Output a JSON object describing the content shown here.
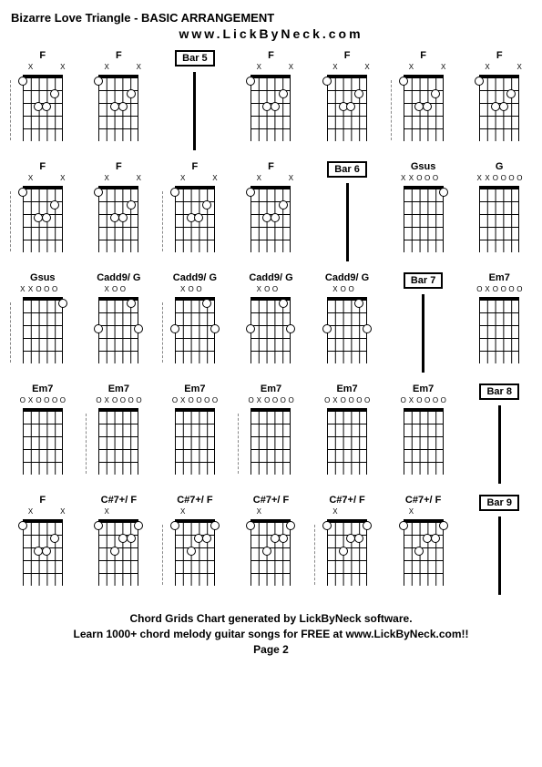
{
  "title": "Bizarre Love Triangle - BASIC ARRANGEMENT",
  "subtitle": "www.LickByNeck.com",
  "footer_line1": "Chord Grids Chart generated by LickByNeck software.",
  "footer_line2": "Learn 1000+ chord melody guitar songs for FREE at www.LickByNeck.com!!",
  "footer_line3": "Page 2",
  "strings": 6,
  "frets": 5,
  "rows": [
    {
      "cells": [
        {
          "type": "chord",
          "label": "F",
          "sep": true,
          "markers": [
            "",
            "X",
            "",
            "",
            "",
            "X"
          ],
          "dots": [
            [
              0,
              1
            ],
            [
              2,
              3
            ],
            [
              3,
              3
            ],
            [
              4,
              2
            ]
          ]
        },
        {
          "type": "chord",
          "label": "F",
          "sep": false,
          "markers": [
            "",
            "X",
            "",
            "",
            "",
            "X"
          ],
          "dots": [
            [
              0,
              1
            ],
            [
              2,
              3
            ],
            [
              3,
              3
            ],
            [
              4,
              2
            ]
          ]
        },
        {
          "type": "bar",
          "label": "Bar 5"
        },
        {
          "type": "chord",
          "label": "F",
          "sep": false,
          "markers": [
            "",
            "X",
            "",
            "",
            "",
            "X"
          ],
          "dots": [
            [
              0,
              1
            ],
            [
              2,
              3
            ],
            [
              3,
              3
            ],
            [
              4,
              2
            ]
          ]
        },
        {
          "type": "chord",
          "label": "F",
          "sep": false,
          "markers": [
            "",
            "X",
            "",
            "",
            "",
            "X"
          ],
          "dots": [
            [
              0,
              1
            ],
            [
              2,
              3
            ],
            [
              3,
              3
            ],
            [
              4,
              2
            ]
          ]
        },
        {
          "type": "chord",
          "label": "F",
          "sep": true,
          "markers": [
            "",
            "X",
            "",
            "",
            "",
            "X"
          ],
          "dots": [
            [
              0,
              1
            ],
            [
              2,
              3
            ],
            [
              3,
              3
            ],
            [
              4,
              2
            ]
          ]
        },
        {
          "type": "chord",
          "label": "F",
          "sep": false,
          "markers": [
            "",
            "X",
            "",
            "",
            "",
            "X"
          ],
          "dots": [
            [
              0,
              1
            ],
            [
              2,
              3
            ],
            [
              3,
              3
            ],
            [
              4,
              2
            ]
          ]
        }
      ]
    },
    {
      "cells": [
        {
          "type": "chord",
          "label": "F",
          "sep": true,
          "markers": [
            "",
            "X",
            "",
            "",
            "",
            "X"
          ],
          "dots": [
            [
              0,
              1
            ],
            [
              2,
              3
            ],
            [
              3,
              3
            ],
            [
              4,
              2
            ]
          ]
        },
        {
          "type": "chord",
          "label": "F",
          "sep": false,
          "markers": [
            "",
            "X",
            "",
            "",
            "",
            "X"
          ],
          "dots": [
            [
              0,
              1
            ],
            [
              2,
              3
            ],
            [
              3,
              3
            ],
            [
              4,
              2
            ]
          ]
        },
        {
          "type": "chord",
          "label": "F",
          "sep": true,
          "markers": [
            "",
            "X",
            "",
            "",
            "",
            "X"
          ],
          "dots": [
            [
              0,
              1
            ],
            [
              2,
              3
            ],
            [
              3,
              3
            ],
            [
              4,
              2
            ]
          ]
        },
        {
          "type": "chord",
          "label": "F",
          "sep": false,
          "markers": [
            "",
            "X",
            "",
            "",
            "",
            "X"
          ],
          "dots": [
            [
              0,
              1
            ],
            [
              2,
              3
            ],
            [
              3,
              3
            ],
            [
              4,
              2
            ]
          ]
        },
        {
          "type": "bar",
          "label": "Bar 6"
        },
        {
          "type": "chord",
          "label": "Gsus",
          "sep": false,
          "markers": [
            "X",
            "X",
            "O",
            "O",
            "O",
            ""
          ],
          "dots": [
            [
              5,
              1
            ]
          ]
        },
        {
          "type": "chord",
          "label": "G",
          "sep": false,
          "markers": [
            "X",
            "X",
            "O",
            "O",
            "O",
            "O"
          ],
          "dots": []
        }
      ]
    },
    {
      "cells": [
        {
          "type": "chord",
          "label": "Gsus",
          "sep": true,
          "markers": [
            "X",
            "X",
            "O",
            "O",
            "O",
            ""
          ],
          "dots": [
            [
              5,
              1
            ]
          ]
        },
        {
          "type": "chord",
          "label": "Cadd9/ G",
          "sep": false,
          "markers": [
            "",
            "X",
            "O",
            "O",
            "",
            ""
          ],
          "dots": [
            [
              0,
              3
            ],
            [
              4,
              1
            ],
            [
              5,
              3
            ]
          ]
        },
        {
          "type": "chord",
          "label": "Cadd9/ G",
          "sep": true,
          "markers": [
            "",
            "X",
            "O",
            "O",
            "",
            ""
          ],
          "dots": [
            [
              0,
              3
            ],
            [
              4,
              1
            ],
            [
              5,
              3
            ]
          ]
        },
        {
          "type": "chord",
          "label": "Cadd9/ G",
          "sep": false,
          "markers": [
            "",
            "X",
            "O",
            "O",
            "",
            ""
          ],
          "dots": [
            [
              0,
              3
            ],
            [
              4,
              1
            ],
            [
              5,
              3
            ]
          ]
        },
        {
          "type": "chord",
          "label": "Cadd9/ G",
          "sep": false,
          "markers": [
            "",
            "X",
            "O",
            "O",
            "",
            ""
          ],
          "dots": [
            [
              0,
              3
            ],
            [
              4,
              1
            ],
            [
              5,
              3
            ]
          ]
        },
        {
          "type": "bar",
          "label": "Bar 7"
        },
        {
          "type": "chord",
          "label": "Em7",
          "sep": false,
          "markers": [
            "O",
            "X",
            "O",
            "O",
            "O",
            "O"
          ],
          "dots": []
        }
      ]
    },
    {
      "cells": [
        {
          "type": "chord",
          "label": "Em7",
          "sep": false,
          "markers": [
            "O",
            "X",
            "O",
            "O",
            "O",
            "O"
          ],
          "dots": []
        },
        {
          "type": "chord",
          "label": "Em7",
          "sep": true,
          "markers": [
            "O",
            "X",
            "O",
            "O",
            "O",
            "O"
          ],
          "dots": []
        },
        {
          "type": "chord",
          "label": "Em7",
          "sep": false,
          "markers": [
            "O",
            "X",
            "O",
            "O",
            "O",
            "O"
          ],
          "dots": []
        },
        {
          "type": "chord",
          "label": "Em7",
          "sep": true,
          "markers": [
            "O",
            "X",
            "O",
            "O",
            "O",
            "O"
          ],
          "dots": []
        },
        {
          "type": "chord",
          "label": "Em7",
          "sep": false,
          "markers": [
            "O",
            "X",
            "O",
            "O",
            "O",
            "O"
          ],
          "dots": []
        },
        {
          "type": "chord",
          "label": "Em7",
          "sep": false,
          "markers": [
            "O",
            "X",
            "O",
            "O",
            "O",
            "O"
          ],
          "dots": []
        },
        {
          "type": "bar",
          "label": "Bar 8"
        }
      ]
    },
    {
      "cells": [
        {
          "type": "chord",
          "label": "F",
          "sep": false,
          "markers": [
            "",
            "X",
            "",
            "",
            "",
            "X"
          ],
          "dots": [
            [
              0,
              1
            ],
            [
              2,
              3
            ],
            [
              3,
              3
            ],
            [
              4,
              2
            ]
          ]
        },
        {
          "type": "chord",
          "label": "C#7+/ F",
          "sep": false,
          "markers": [
            "",
            "X",
            "",
            "",
            "",
            ""
          ],
          "dots": [
            [
              0,
              1
            ],
            [
              2,
              3
            ],
            [
              3,
              2
            ],
            [
              4,
              2
            ],
            [
              5,
              1
            ]
          ]
        },
        {
          "type": "chord",
          "label": "C#7+/ F",
          "sep": true,
          "markers": [
            "",
            "X",
            "",
            "",
            "",
            ""
          ],
          "dots": [
            [
              0,
              1
            ],
            [
              2,
              3
            ],
            [
              3,
              2
            ],
            [
              4,
              2
            ],
            [
              5,
              1
            ]
          ]
        },
        {
          "type": "chord",
          "label": "C#7+/ F",
          "sep": false,
          "markers": [
            "",
            "X",
            "",
            "",
            "",
            ""
          ],
          "dots": [
            [
              0,
              1
            ],
            [
              2,
              3
            ],
            [
              3,
              2
            ],
            [
              4,
              2
            ],
            [
              5,
              1
            ]
          ]
        },
        {
          "type": "chord",
          "label": "C#7+/ F",
          "sep": true,
          "markers": [
            "",
            "X",
            "",
            "",
            "",
            ""
          ],
          "dots": [
            [
              0,
              1
            ],
            [
              2,
              3
            ],
            [
              3,
              2
            ],
            [
              4,
              2
            ],
            [
              5,
              1
            ]
          ]
        },
        {
          "type": "chord",
          "label": "C#7+/ F",
          "sep": false,
          "markers": [
            "",
            "X",
            "",
            "",
            "",
            ""
          ],
          "dots": [
            [
              0,
              1
            ],
            [
              2,
              3
            ],
            [
              3,
              2
            ],
            [
              4,
              2
            ],
            [
              5,
              1
            ]
          ]
        },
        {
          "type": "bar",
          "label": "Bar 9"
        }
      ]
    }
  ]
}
